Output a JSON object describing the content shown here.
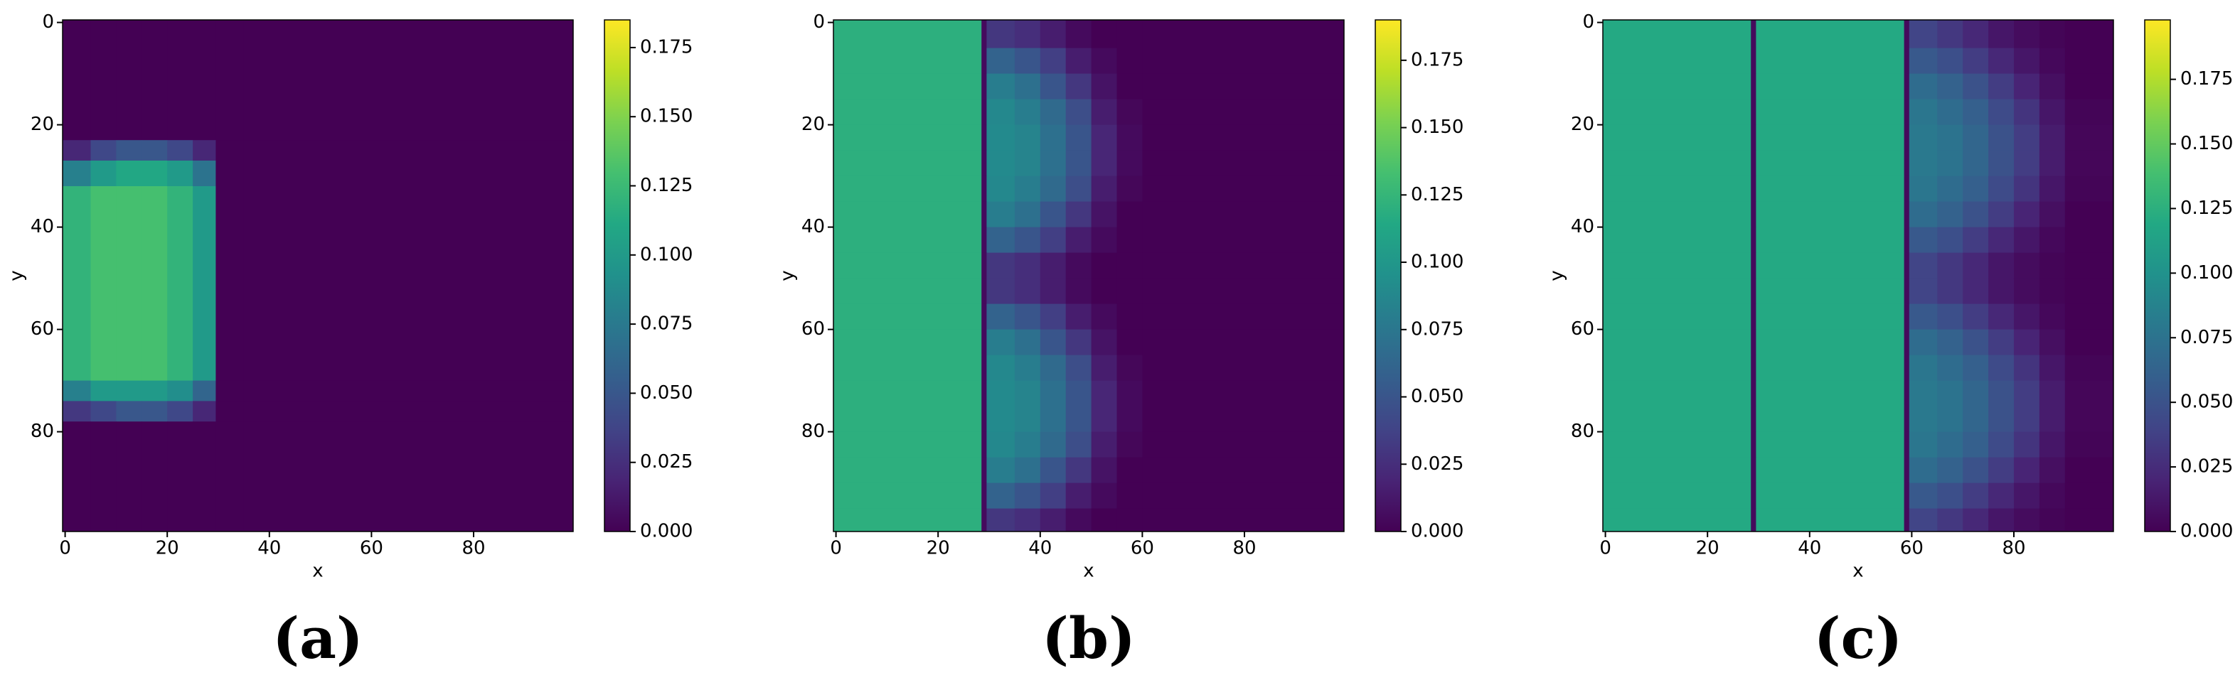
{
  "chart_data": [
    {
      "type": "heatmap",
      "title": "(a)",
      "xlabel": "x",
      "ylabel": "y",
      "cmap": "viridis",
      "x_edges": [
        -0.5,
        5,
        10,
        15,
        20,
        25,
        29.5,
        35,
        99.5
      ],
      "y_edges": [
        -0.5,
        23,
        27,
        32,
        70,
        74,
        78,
        99.5
      ],
      "z": [
        [
          0,
          0,
          0,
          0,
          0,
          0,
          0,
          0
        ],
        [
          0.02,
          0.04,
          0.05,
          0.05,
          0.04,
          0.02,
          0,
          0
        ],
        [
          0.08,
          0.1,
          0.11,
          0.11,
          0.1,
          0.07,
          0,
          0
        ],
        [
          0.12,
          0.13,
          0.13,
          0.13,
          0.12,
          0.1,
          0,
          0
        ],
        [
          0.08,
          0.1,
          0.1,
          0.1,
          0.09,
          0.06,
          0,
          0
        ],
        [
          0.03,
          0.04,
          0.05,
          0.05,
          0.04,
          0.02,
          0,
          0
        ],
        [
          0,
          0,
          0,
          0,
          0,
          0,
          0,
          0
        ]
      ],
      "xlim": [
        -0.5,
        99.5
      ],
      "ylim": [
        99.5,
        -0.5
      ],
      "xticks": [
        0,
        20,
        40,
        60,
        80
      ],
      "yticks": [
        0,
        20,
        40,
        60,
        80
      ],
      "clim": [
        0,
        0.185
      ],
      "cticks": [
        {
          "value": 0,
          "label": "0.000"
        },
        {
          "value": 0.025,
          "label": "0.025"
        },
        {
          "value": 0.05,
          "label": "0.050"
        },
        {
          "value": 0.075,
          "label": "0.075"
        },
        {
          "value": 0.1,
          "label": "0.100"
        },
        {
          "value": 0.125,
          "label": "0.125"
        },
        {
          "value": 0.15,
          "label": "0.150"
        },
        {
          "value": 0.175,
          "label": "0.175"
        }
      ]
    },
    {
      "type": "heatmap",
      "title": "(b)",
      "xlabel": "x",
      "ylabel": "y",
      "cmap": "viridis",
      "x_edges": [
        -0.5,
        28.5,
        29.5,
        35,
        40,
        45,
        50,
        55,
        60,
        99.5
      ],
      "y_edges": [
        -0.5,
        5,
        10,
        15,
        20,
        25,
        30,
        35,
        40,
        45,
        50,
        55,
        60,
        65,
        70,
        75,
        80,
        85,
        90,
        95,
        99.5
      ],
      "z": [
        [
          0.12,
          0.005,
          0.03,
          0.025,
          0.015,
          0.005,
          0,
          0,
          0
        ],
        [
          0.12,
          0.005,
          0.06,
          0.05,
          0.035,
          0.015,
          0.005,
          0,
          0
        ],
        [
          0.12,
          0.005,
          0.08,
          0.07,
          0.05,
          0.03,
          0.01,
          0,
          0
        ],
        [
          0.12,
          0.005,
          0.088,
          0.08,
          0.065,
          0.045,
          0.015,
          0.003,
          0
        ],
        [
          0.12,
          0.005,
          0.09,
          0.085,
          0.07,
          0.05,
          0.02,
          0.005,
          0
        ],
        [
          0.12,
          0.005,
          0.09,
          0.085,
          0.07,
          0.05,
          0.02,
          0.005,
          0
        ],
        [
          0.12,
          0.005,
          0.088,
          0.08,
          0.065,
          0.045,
          0.015,
          0.003,
          0
        ],
        [
          0.12,
          0.005,
          0.08,
          0.07,
          0.05,
          0.03,
          0.01,
          0,
          0
        ],
        [
          0.12,
          0.005,
          0.06,
          0.05,
          0.035,
          0.015,
          0.005,
          0,
          0
        ],
        [
          0.12,
          0.005,
          0.03,
          0.025,
          0.015,
          0.005,
          0,
          0,
          0
        ],
        [
          0.12,
          0.005,
          0.03,
          0.025,
          0.015,
          0.005,
          0,
          0,
          0
        ],
        [
          0.12,
          0.005,
          0.06,
          0.05,
          0.035,
          0.015,
          0.005,
          0,
          0
        ],
        [
          0.12,
          0.005,
          0.08,
          0.07,
          0.05,
          0.03,
          0.01,
          0,
          0
        ],
        [
          0.12,
          0.005,
          0.088,
          0.08,
          0.065,
          0.045,
          0.015,
          0.003,
          0
        ],
        [
          0.12,
          0.005,
          0.09,
          0.085,
          0.07,
          0.05,
          0.02,
          0.005,
          0
        ],
        [
          0.12,
          0.005,
          0.09,
          0.085,
          0.07,
          0.05,
          0.02,
          0.005,
          0
        ],
        [
          0.12,
          0.005,
          0.088,
          0.08,
          0.065,
          0.045,
          0.015,
          0.003,
          0
        ],
        [
          0.12,
          0.005,
          0.08,
          0.07,
          0.05,
          0.03,
          0.01,
          0,
          0
        ],
        [
          0.12,
          0.005,
          0.06,
          0.05,
          0.035,
          0.015,
          0.005,
          0,
          0
        ],
        [
          0.12,
          0.005,
          0.03,
          0.025,
          0.015,
          0.005,
          0,
          0,
          0
        ]
      ],
      "xlim": [
        -0.5,
        99.5
      ],
      "ylim": [
        99.5,
        -0.5
      ],
      "xticks": [
        0,
        20,
        40,
        60,
        80
      ],
      "yticks": [
        0,
        20,
        40,
        60,
        80
      ],
      "clim": [
        0,
        0.19
      ],
      "cticks": [
        {
          "value": 0,
          "label": "0.000"
        },
        {
          "value": 0.025,
          "label": "0.025"
        },
        {
          "value": 0.05,
          "label": "0.050"
        },
        {
          "value": 0.075,
          "label": "0.075"
        },
        {
          "value": 0.1,
          "label": "0.100"
        },
        {
          "value": 0.125,
          "label": "0.125"
        },
        {
          "value": 0.15,
          "label": "0.150"
        },
        {
          "value": 0.175,
          "label": "0.175"
        }
      ]
    },
    {
      "type": "heatmap",
      "title": "(c)",
      "xlabel": "x",
      "ylabel": "y",
      "cmap": "viridis",
      "x_edges": [
        -0.5,
        28.5,
        29.5,
        58.5,
        59.5,
        65,
        70,
        75,
        80,
        85,
        90,
        99.5
      ],
      "y_edges": [
        -0.5,
        5,
        10,
        15,
        20,
        25,
        30,
        35,
        40,
        45,
        50,
        55,
        60,
        65,
        70,
        75,
        80,
        85,
        90,
        95,
        99.5
      ],
      "z": [
        [
          0.12,
          0.005,
          0.12,
          0.005,
          0.04,
          0.032,
          0.022,
          0.012,
          0.006,
          0.002,
          0
        ],
        [
          0.12,
          0.005,
          0.12,
          0.005,
          0.055,
          0.048,
          0.035,
          0.022,
          0.012,
          0.004,
          0
        ],
        [
          0.12,
          0.005,
          0.12,
          0.005,
          0.07,
          0.062,
          0.05,
          0.035,
          0.02,
          0.008,
          0
        ],
        [
          0.12,
          0.005,
          0.12,
          0.005,
          0.078,
          0.07,
          0.06,
          0.045,
          0.03,
          0.012,
          0.002
        ],
        [
          0.12,
          0.005,
          0.12,
          0.005,
          0.08,
          0.075,
          0.065,
          0.05,
          0.035,
          0.015,
          0.003
        ],
        [
          0.12,
          0.005,
          0.12,
          0.005,
          0.08,
          0.075,
          0.065,
          0.05,
          0.035,
          0.015,
          0.003
        ],
        [
          0.12,
          0.005,
          0.12,
          0.005,
          0.078,
          0.07,
          0.06,
          0.045,
          0.03,
          0.012,
          0.002
        ],
        [
          0.12,
          0.005,
          0.12,
          0.005,
          0.07,
          0.062,
          0.05,
          0.035,
          0.02,
          0.008,
          0
        ],
        [
          0.12,
          0.005,
          0.12,
          0.005,
          0.055,
          0.048,
          0.035,
          0.022,
          0.012,
          0.004,
          0
        ],
        [
          0.12,
          0.005,
          0.12,
          0.005,
          0.04,
          0.032,
          0.022,
          0.012,
          0.006,
          0.002,
          0
        ],
        [
          0.12,
          0.005,
          0.12,
          0.005,
          0.04,
          0.032,
          0.022,
          0.012,
          0.006,
          0.002,
          0
        ],
        [
          0.12,
          0.005,
          0.12,
          0.005,
          0.055,
          0.048,
          0.035,
          0.022,
          0.012,
          0.004,
          0
        ],
        [
          0.12,
          0.005,
          0.12,
          0.005,
          0.07,
          0.062,
          0.05,
          0.035,
          0.02,
          0.008,
          0
        ],
        [
          0.12,
          0.005,
          0.12,
          0.005,
          0.078,
          0.07,
          0.06,
          0.045,
          0.03,
          0.012,
          0.002
        ],
        [
          0.12,
          0.005,
          0.12,
          0.005,
          0.08,
          0.075,
          0.065,
          0.05,
          0.035,
          0.015,
          0.003
        ],
        [
          0.12,
          0.005,
          0.12,
          0.005,
          0.08,
          0.075,
          0.065,
          0.05,
          0.035,
          0.015,
          0.003
        ],
        [
          0.12,
          0.005,
          0.12,
          0.005,
          0.078,
          0.07,
          0.06,
          0.045,
          0.03,
          0.012,
          0.002
        ],
        [
          0.12,
          0.005,
          0.12,
          0.005,
          0.07,
          0.062,
          0.05,
          0.035,
          0.02,
          0.008,
          0
        ],
        [
          0.12,
          0.005,
          0.12,
          0.005,
          0.055,
          0.048,
          0.035,
          0.022,
          0.012,
          0.004,
          0
        ],
        [
          0.12,
          0.005,
          0.12,
          0.005,
          0.04,
          0.032,
          0.022,
          0.012,
          0.006,
          0.002,
          0
        ]
      ],
      "xlim": [
        -0.5,
        99.5
      ],
      "ylim": [
        99.5,
        -0.5
      ],
      "xticks": [
        0,
        20,
        40,
        60,
        80
      ],
      "yticks": [
        0,
        20,
        40,
        60,
        80
      ],
      "clim": [
        0,
        0.198
      ],
      "cticks": [
        {
          "value": 0,
          "label": "0.000"
        },
        {
          "value": 0.025,
          "label": "0.025"
        },
        {
          "value": 0.05,
          "label": "0.050"
        },
        {
          "value": 0.075,
          "label": "0.075"
        },
        {
          "value": 0.1,
          "label": "0.100"
        },
        {
          "value": 0.125,
          "label": "0.125"
        },
        {
          "value": 0.15,
          "label": "0.150"
        },
        {
          "value": 0.175,
          "label": "0.175"
        }
      ]
    }
  ]
}
